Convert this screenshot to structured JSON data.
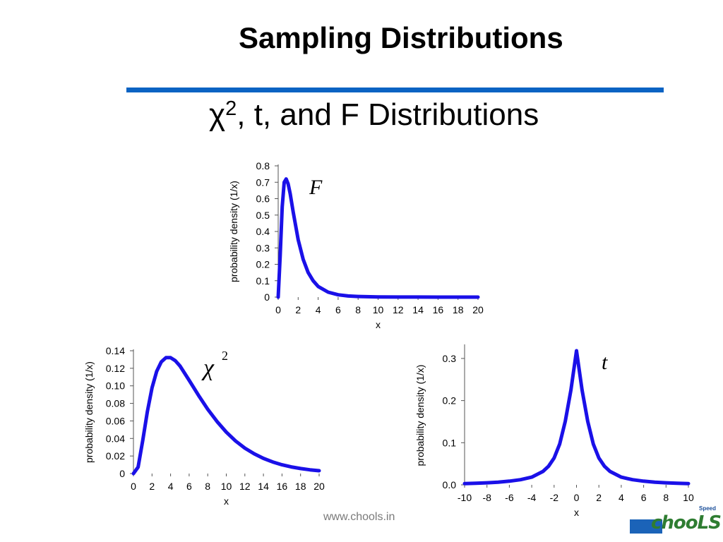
{
  "slide": {
    "title": "Sampling Distributions",
    "subtitle_symbol": "χ",
    "subtitle_sup": "2",
    "subtitle_rest": ", t, and F Distributions",
    "footer": "www.chools.in",
    "logo_small": "Speed",
    "logo_text": "chooLS",
    "accent_color": "#0b63c3",
    "curve_color": "#1a10e8"
  },
  "chart_data": [
    {
      "id": "F",
      "type": "line",
      "label": "F",
      "ylabel": "probability density (1/x)",
      "xlabel": "x",
      "xlim": [
        0,
        20
      ],
      "ylim": [
        0,
        0.8
      ],
      "xticks": [
        "0",
        "2",
        "4",
        "6",
        "8",
        "10",
        "12",
        "14",
        "16",
        "18",
        "20"
      ],
      "yticks": [
        "0",
        "0.1",
        "0.2",
        "0.3",
        "0.4",
        "0.5",
        "0.6",
        "0.7",
        "0.8"
      ],
      "x": [
        0,
        0.2,
        0.4,
        0.6,
        0.8,
        1.0,
        1.2,
        1.5,
        2.0,
        2.5,
        3.0,
        3.5,
        4.0,
        5.0,
        6.0,
        7.0,
        8.0,
        10.0,
        12.0,
        14.0,
        16.0,
        18.0,
        20.0
      ],
      "y": [
        0,
        0.25,
        0.55,
        0.7,
        0.72,
        0.69,
        0.63,
        0.52,
        0.35,
        0.23,
        0.15,
        0.1,
        0.065,
        0.03,
        0.014,
        0.007,
        0.004,
        0.0015,
        0.0006,
        0.0003,
        0.0001,
        0.0001,
        0
      ]
    },
    {
      "id": "chi2",
      "type": "line",
      "label": "χ",
      "label_sup": "2",
      "ylabel": "probability density (1/x)",
      "xlabel": "x",
      "xlim": [
        0,
        20
      ],
      "ylim": [
        0,
        0.14
      ],
      "xticks": [
        "0",
        "2",
        "4",
        "6",
        "8",
        "10",
        "12",
        "14",
        "16",
        "18",
        "20"
      ],
      "yticks": [
        "0",
        "0.02",
        "0.04",
        "0.06",
        "0.08",
        "0.10",
        "0.12",
        "0.14"
      ],
      "x": [
        0,
        0.5,
        1,
        1.5,
        2,
        2.5,
        3,
        3.5,
        4,
        4.5,
        5,
        6,
        7,
        8,
        9,
        10,
        11,
        12,
        13,
        14,
        15,
        16,
        17,
        18,
        19,
        20
      ],
      "y": [
        0,
        0.0073,
        0.0379,
        0.0706,
        0.0977,
        0.1165,
        0.1273,
        0.1321,
        0.1321,
        0.1287,
        0.1228,
        0.1063,
        0.0892,
        0.0733,
        0.0593,
        0.0472,
        0.0372,
        0.029,
        0.0225,
        0.0173,
        0.0132,
        0.01,
        0.0076,
        0.0057,
        0.0043,
        0.0032
      ]
    },
    {
      "id": "t",
      "type": "line",
      "label": "t",
      "ylabel": "probability density (1/x)",
      "xlabel": "x",
      "xlim": [
        -10,
        10
      ],
      "ylim": [
        0,
        0.33
      ],
      "xticks": [
        "-10",
        "-8",
        "-6",
        "-4",
        "-2",
        "0",
        "2",
        "4",
        "6",
        "8",
        "10"
      ],
      "yticks": [
        "0.0",
        "0.1",
        "0.2",
        "0.3"
      ],
      "x": [
        -10,
        -9,
        -8,
        -7,
        -6,
        -5,
        -4,
        -3,
        -2.5,
        -2,
        -1.5,
        -1,
        -0.5,
        0,
        0.5,
        1,
        1.5,
        2,
        2.5,
        3,
        4,
        5,
        6,
        7,
        8,
        9,
        10
      ],
      "y": [
        0.003,
        0.0039,
        0.0049,
        0.0064,
        0.0087,
        0.0122,
        0.0183,
        0.0318,
        0.044,
        0.0637,
        0.0969,
        0.1508,
        0.225,
        0.3183,
        0.225,
        0.1508,
        0.0969,
        0.0637,
        0.044,
        0.0318,
        0.0183,
        0.0122,
        0.0087,
        0.0064,
        0.0049,
        0.0039,
        0.003
      ]
    }
  ]
}
